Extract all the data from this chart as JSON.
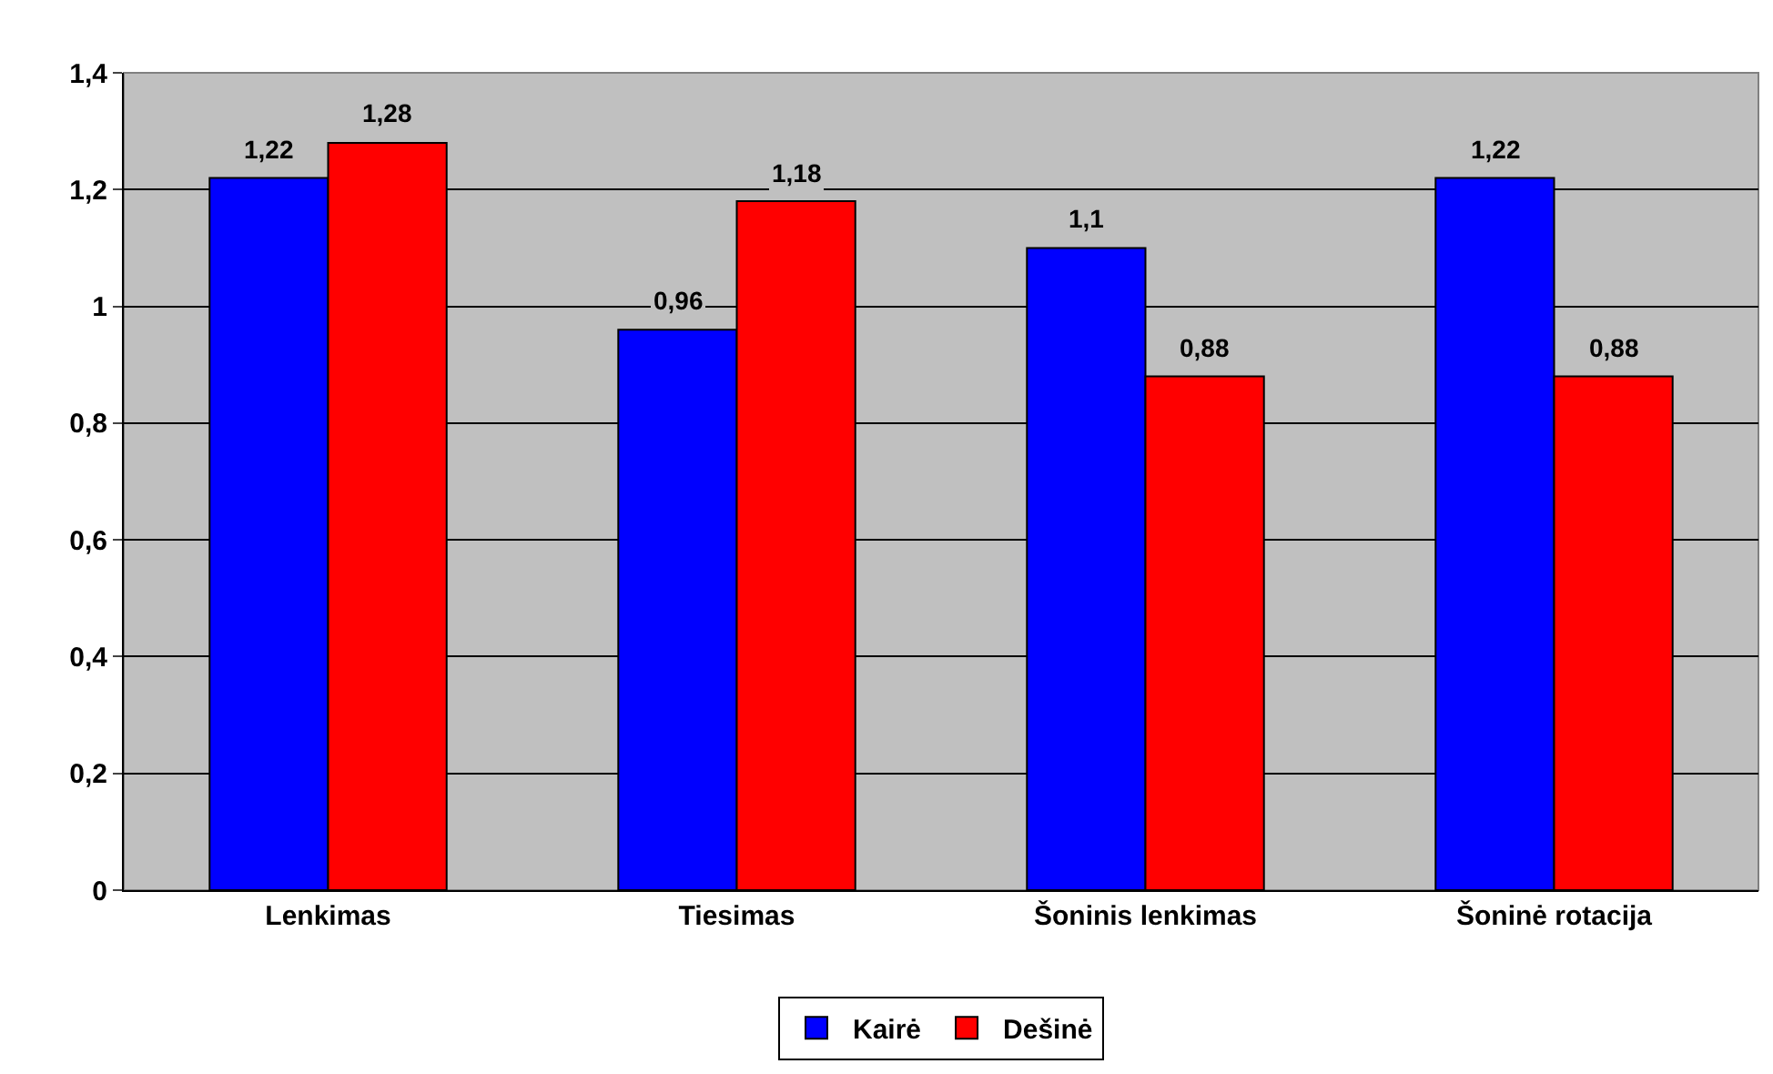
{
  "chart_data": {
    "type": "bar",
    "categories": [
      "Lenkimas",
      "Tiesimas",
      "Šoninis lenkimas",
      "Šoninė rotacija"
    ],
    "series": [
      {
        "name": "Kairė",
        "color": "#0000ff",
        "values": [
          1.22,
          0.96,
          1.1,
          1.22
        ],
        "value_labels": [
          "1,22",
          "0,96",
          "1,1",
          "1,22"
        ]
      },
      {
        "name": "Dešinė",
        "color": "#ff0000",
        "values": [
          1.28,
          1.18,
          0.88,
          0.88
        ],
        "value_labels": [
          "1,28",
          "1,18",
          "0,88",
          "0,88"
        ]
      }
    ],
    "ylim": [
      0,
      1.4
    ],
    "yticks": [
      0,
      {
        "value": 0.2,
        "label": "0,2"
      },
      {
        "value": 0.4,
        "label": "0,4"
      },
      {
        "value": 0.6,
        "label": "0,6"
      },
      {
        "value": 0.8,
        "label": "0,8"
      },
      1,
      {
        "value": 1.2,
        "label": "1,2"
      },
      {
        "value": 1.4,
        "label": "1,4"
      }
    ],
    "grid": "y",
    "legend": "bottom"
  }
}
